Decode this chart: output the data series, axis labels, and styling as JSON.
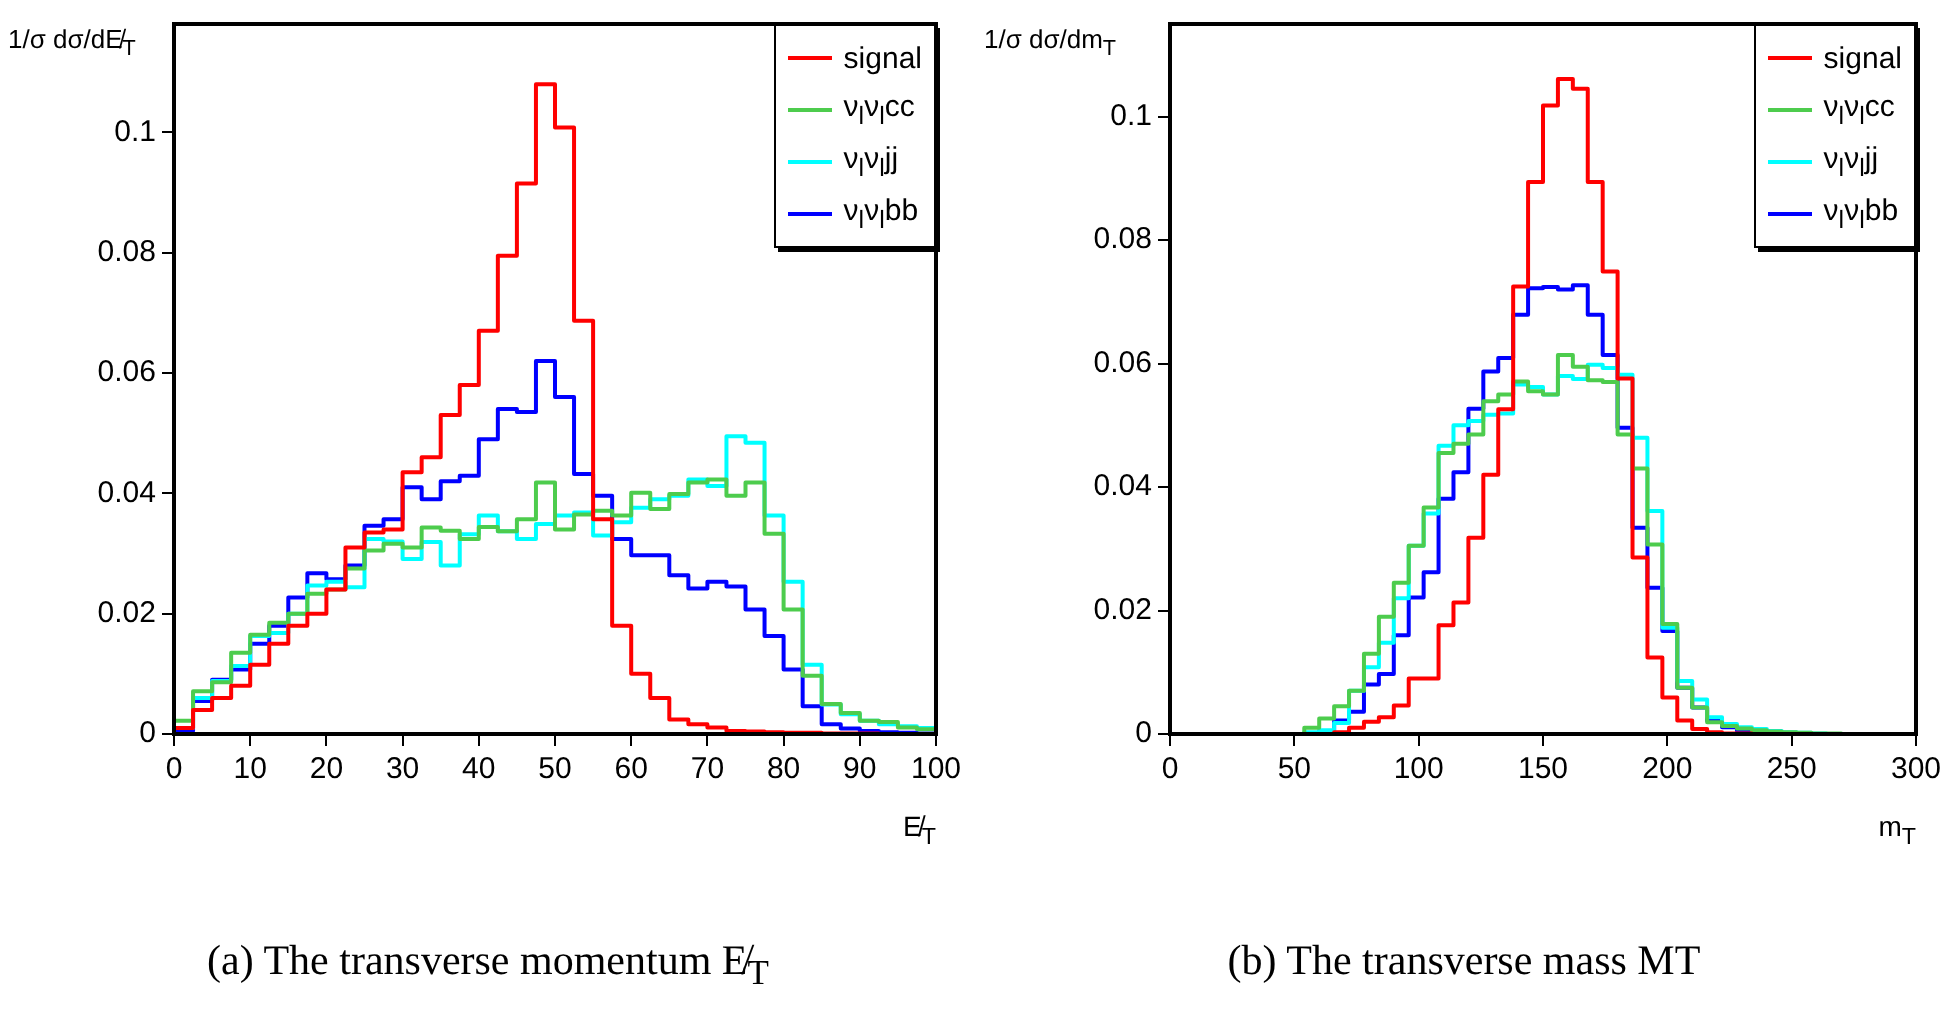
{
  "chart_data": [
    {
      "type": "histogram",
      "xlabel": "E̸$_{T}$",
      "ylabel": "1/σ dσ/dE̸$_{T}$",
      "legend": "top right",
      "annotations": [
        "(a) The transverse momentum E̸$_{T}$"
      ],
      "xlim": [
        0,
        100
      ],
      "ylim": [
        0,
        0.118
      ],
      "xticks": [
        0,
        10,
        20,
        30,
        40,
        50,
        60,
        70,
        80,
        90,
        100
      ],
      "yticks": [
        0,
        0.02,
        0.04,
        0.06,
        0.08,
        0.1
      ],
      "bins": [
        0,
        2.5,
        5,
        7.5,
        10,
        12.5,
        15,
        17.5,
        20,
        22.5,
        25,
        27.5,
        30,
        32.5,
        35,
        37.5,
        40,
        42.5,
        45,
        47.5,
        50,
        52.5,
        55,
        57.5,
        60,
        62.5,
        65,
        67.5,
        70,
        72.5,
        75,
        77.5,
        80,
        82.5,
        85,
        87.5,
        90,
        92.5,
        95,
        97.5,
        100
      ],
      "series": [
        {
          "name": "signal",
          "color": "#ff0000",
          "values": [
            0.001,
            0.004,
            0.006,
            0.008,
            0.0115,
            0.015,
            0.018,
            0.02,
            0.024,
            0.031,
            0.0335,
            0.034,
            0.0435,
            0.046,
            0.053,
            0.058,
            0.067,
            0.0795,
            0.0915,
            0.108,
            0.1008,
            0.0687,
            0.0357,
            0.018,
            0.01,
            0.006,
            0.0024,
            0.0016,
            0.0011,
            0.0005,
            0.0004,
            0.0003,
            0.0002,
            0.0002,
            0.0001,
            0.0001,
            0.0001,
            0,
            0,
            0
          ]
        },
        {
          "name": "ν$_{l}$ν$_{l}$cc",
          "color": "#4dcc4d",
          "values": [
            0.0022,
            0.0071,
            0.0086,
            0.0135,
            0.0165,
            0.0185,
            0.02,
            0.0233,
            0.024,
            0.0275,
            0.0305,
            0.0316,
            0.031,
            0.0343,
            0.0338,
            0.0324,
            0.0344,
            0.0337,
            0.0357,
            0.0418,
            0.034,
            0.0365,
            0.0371,
            0.0363,
            0.0401,
            0.0374,
            0.0399,
            0.0418,
            0.0423,
            0.0396,
            0.0418,
            0.0333,
            0.0207,
            0.0097,
            0.005,
            0.0035,
            0.0022,
            0.002,
            0.0011,
            0.0008
          ]
        },
        {
          "name": "ν$_{l}$ν$_{l}$jj",
          "color": "#00ffff",
          "values": [
            0.001,
            0.006,
            0.0088,
            0.0113,
            0.0163,
            0.0168,
            0.02,
            0.0247,
            0.0253,
            0.0244,
            0.0324,
            0.032,
            0.0291,
            0.0319,
            0.028,
            0.0332,
            0.0363,
            0.0337,
            0.0324,
            0.0349,
            0.0363,
            0.0368,
            0.033,
            0.0352,
            0.0376,
            0.039,
            0.0396,
            0.0423,
            0.0412,
            0.0495,
            0.0484,
            0.0363,
            0.0253,
            0.0115,
            0.0049,
            0.0033,
            0.0022,
            0.0016,
            0.0013,
            0.001
          ]
        },
        {
          "name": "ν$_{l}$ν$_{l}$bb",
          "color": "#0000ff",
          "values": [
            0.0005,
            0.0055,
            0.009,
            0.0107,
            0.015,
            0.018,
            0.0227,
            0.0267,
            0.0257,
            0.028,
            0.0346,
            0.0357,
            0.041,
            0.039,
            0.042,
            0.0429,
            0.049,
            0.054,
            0.0535,
            0.062,
            0.056,
            0.0432,
            0.0396,
            0.0324,
            0.0297,
            0.0297,
            0.0264,
            0.0242,
            0.0253,
            0.0245,
            0.0207,
            0.0163,
            0.0107,
            0.0046,
            0.0016,
            0.0009,
            0.0005,
            0.0003,
            0.0002,
            0.0001
          ]
        }
      ]
    },
    {
      "type": "histogram",
      "xlabel": "m$_{T}$",
      "ylabel": "1/σ dσ/dm$_{T}$",
      "legend": "top right",
      "annotations": [
        "(b) The transverse mass MT"
      ],
      "xlim": [
        0,
        300
      ],
      "ylim": [
        0,
        0.115
      ],
      "xticks": [
        0,
        50,
        100,
        150,
        200,
        250,
        300
      ],
      "yticks": [
        0,
        0.02,
        0.04,
        0.06,
        0.08,
        0.1
      ],
      "bins": [
        0,
        6,
        12,
        18,
        24,
        30,
        36,
        42,
        48,
        54,
        60,
        66,
        72,
        78,
        84,
        90,
        96,
        102,
        108,
        114,
        120,
        126,
        132,
        138,
        144,
        150,
        156,
        162,
        168,
        174,
        180,
        186,
        192,
        198,
        204,
        210,
        216,
        222,
        228,
        234,
        240,
        246,
        252,
        258,
        264,
        270,
        276,
        282,
        288,
        294,
        300
      ],
      "series": [
        {
          "name": "signal",
          "color": "#ff0000",
          "values": [
            0,
            0,
            0,
            0,
            0,
            0,
            0,
            0,
            0,
            0,
            0,
            0.0003,
            0.001,
            0.002,
            0.0027,
            0.0046,
            0.009,
            0.009,
            0.0176,
            0.0213,
            0.0318,
            0.042,
            0.0526,
            0.0725,
            0.0894,
            0.1018,
            0.1061,
            0.1045,
            0.0894,
            0.0749,
            0.0576,
            0.0286,
            0.0124,
            0.0059,
            0.0022,
            0.0008,
            0.0003,
            0.0001,
            0.0001,
            0,
            0,
            0,
            0,
            0,
            0,
            0,
            0,
            0,
            0,
            0
          ]
        },
        {
          "name": "ν$_{l}$ν$_{l}$cc",
          "color": "#4dcc4d",
          "values": [
            0,
            0,
            0,
            0,
            0,
            0,
            0,
            0,
            0,
            0.001,
            0.0025,
            0.0045,
            0.007,
            0.013,
            0.019,
            0.0245,
            0.0305,
            0.0367,
            0.0455,
            0.047,
            0.0485,
            0.0539,
            0.055,
            0.0571,
            0.0555,
            0.055,
            0.0614,
            0.0595,
            0.0573,
            0.057,
            0.0485,
            0.043,
            0.0307,
            0.0178,
            0.0075,
            0.0043,
            0.0019,
            0.0013,
            0.0009,
            0.0006,
            0.0004,
            0.0003,
            0.0002,
            0.0001,
            0.0001,
            0,
            0,
            0,
            0,
            0
          ]
        },
        {
          "name": "ν$_{l}$ν$_{l}$jj",
          "color": "#00ffff",
          "values": [
            0,
            0,
            0,
            0,
            0,
            0,
            0,
            0,
            0,
            0.0003,
            0.0006,
            0.0018,
            0.007,
            0.0108,
            0.0148,
            0.022,
            0.0305,
            0.0357,
            0.0467,
            0.05,
            0.0507,
            0.0517,
            0.0519,
            0.0566,
            0.0562,
            0.055,
            0.058,
            0.0575,
            0.0598,
            0.0593,
            0.0582,
            0.048,
            0.0361,
            0.0172,
            0.0086,
            0.0056,
            0.0027,
            0.0016,
            0.0011,
            0.0008,
            0.0005,
            0.0003,
            0.0002,
            0.0001,
            0,
            0,
            0,
            0,
            0,
            0
          ]
        },
        {
          "name": "ν$_{l}$ν$_{l}$bb",
          "color": "#0000ff",
          "values": [
            0,
            0,
            0,
            0,
            0,
            0,
            0,
            0,
            0,
            0.0001,
            0.0005,
            0.0022,
            0.0036,
            0.008,
            0.0097,
            0.016,
            0.0221,
            0.0262,
            0.0381,
            0.0424,
            0.0527,
            0.0587,
            0.0609,
            0.0679,
            0.0722,
            0.0724,
            0.072,
            0.0727,
            0.0679,
            0.0614,
            0.0496,
            0.0334,
            0.0237,
            0.0167,
            0.0075,
            0.0043,
            0.0022,
            0.0011,
            0.0005,
            0.0002,
            0.0001,
            0.0001,
            0,
            0,
            0,
            0,
            0,
            0,
            0,
            0
          ]
        }
      ]
    }
  ]
}
